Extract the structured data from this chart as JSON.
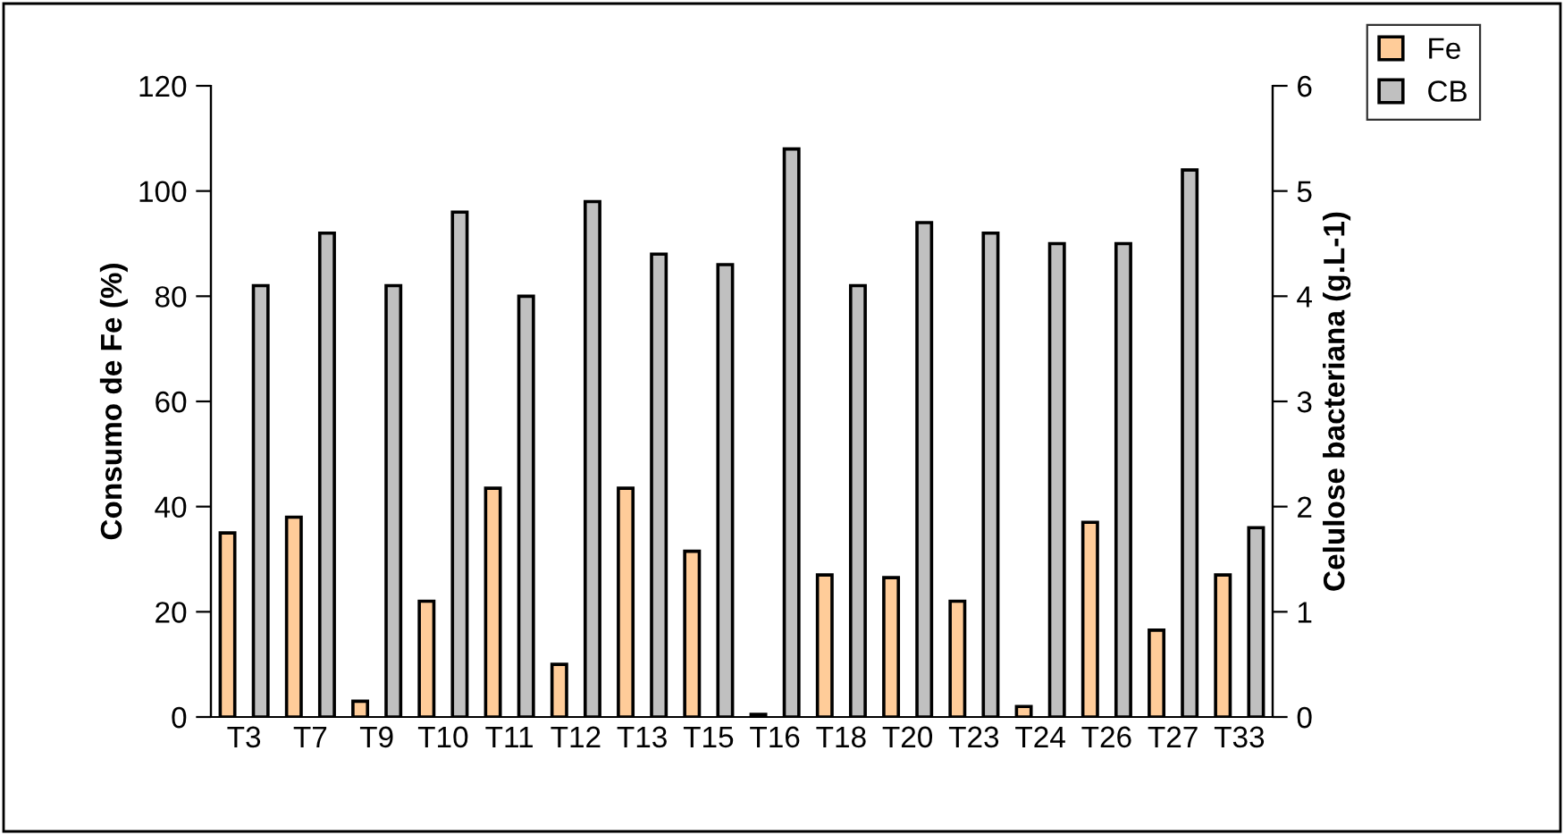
{
  "chart_data": {
    "type": "bar",
    "ylabel": "Consumo de Fe (%)",
    "y2label": "Celulose bacteriana (g.L-1)",
    "categories": [
      "T3",
      "T7",
      "T9",
      "T10",
      "T11",
      "T12",
      "T13",
      "T15",
      "T16",
      "T18",
      "T20",
      "T23",
      "T24",
      "T26",
      "T27",
      "T33"
    ],
    "series": [
      {
        "name": "Fe",
        "color": "#ffcc99",
        "values": [
          35,
          38,
          3,
          22,
          43.5,
          10,
          43.5,
          31.5,
          0.5,
          27,
          26.5,
          22,
          2,
          37,
          16.5,
          27
        ]
      },
      {
        "name": "CB",
        "color": "#c0c0c0",
        "axis": "y2",
        "values": [
          4.1,
          4.6,
          4.1,
          4.8,
          4.0,
          4.9,
          4.4,
          4.3,
          5.4,
          4.1,
          4.7,
          4.6,
          4.5,
          4.5,
          5.2,
          1.8
        ]
      }
    ],
    "ylim": [
      0,
      120
    ],
    "yticks": [
      0,
      20,
      40,
      60,
      80,
      100,
      120
    ],
    "y2lim": [
      0,
      6
    ],
    "y2ticks": [
      0,
      1,
      2,
      3,
      4,
      5,
      6
    ],
    "grid": false,
    "legend": "top right"
  }
}
